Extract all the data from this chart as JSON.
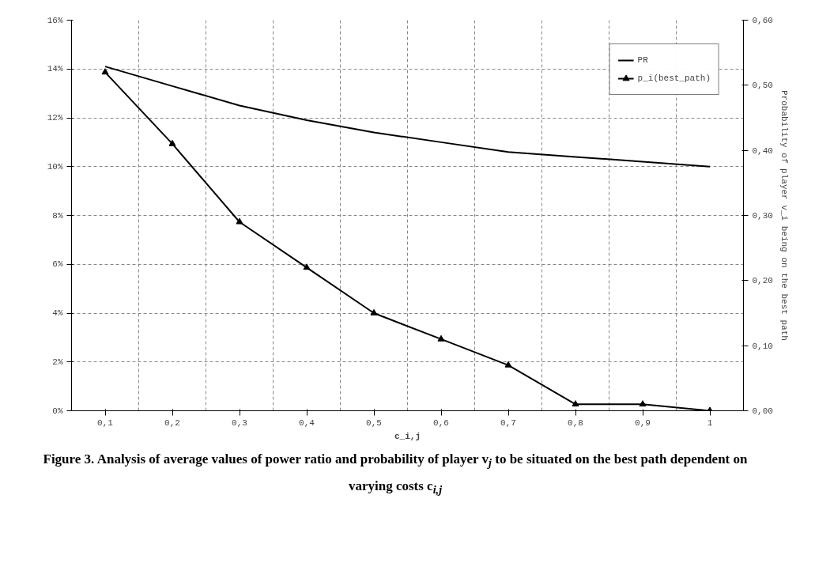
{
  "chart_data": {
    "type": "line",
    "title": "Figure 3. Analysis of average values of power ratio and probability of player v$_{j}$ to be situated on the best path dependent on varying costs c$_{i,j}$",
    "xlabel": "c_i,j",
    "y2label": "Probability of player v_i being on the best path",
    "categories": [
      "0,1",
      "0,2",
      "0,3",
      "0,4",
      "0,5",
      "0,6",
      "0,7",
      "0,8",
      "0,9",
      "1"
    ],
    "series": [
      {
        "name": "PR",
        "color": "#000000",
        "marker": "none",
        "values": [
          14.1,
          13.3,
          12.5,
          11.9,
          11.4,
          11.0,
          10.6,
          10.4,
          10.2,
          10.0
        ]
      },
      {
        "name": "p_i(best_path)",
        "color": "#000000",
        "marker": "triangle",
        "axis": "y2",
        "values": [
          0.52,
          0.41,
          0.29,
          0.22,
          0.15,
          0.11,
          0.07,
          0.01,
          0.01,
          0.0
        ]
      }
    ],
    "ylim": [
      0,
      16
    ],
    "yticks": [
      {
        "value": 0,
        "label": "0%"
      },
      {
        "value": 2,
        "label": "2%"
      },
      {
        "value": 4,
        "label": "4%"
      },
      {
        "value": 6,
        "label": "6%"
      },
      {
        "value": 8,
        "label": "8%"
      },
      {
        "value": 10,
        "label": "10%"
      },
      {
        "value": 12,
        "label": "12%"
      },
      {
        "value": 14,
        "label": "14%"
      },
      {
        "value": 16,
        "label": "16%"
      }
    ],
    "y2lim": [
      0,
      0.6
    ],
    "y2ticks": [
      {
        "value": 0,
        "label": "0,00"
      },
      {
        "value": 0.1,
        "label": "0,10"
      },
      {
        "value": 0.2,
        "label": "0,20"
      },
      {
        "value": 0.3,
        "label": "0,30"
      },
      {
        "value": 0.4,
        "label": "0,40"
      },
      {
        "value": 0.5,
        "label": "0,50"
      },
      {
        "value": 0.6,
        "label": "0,60"
      }
    ],
    "grid": true,
    "line_style": "solid",
    "legend": "top right"
  }
}
